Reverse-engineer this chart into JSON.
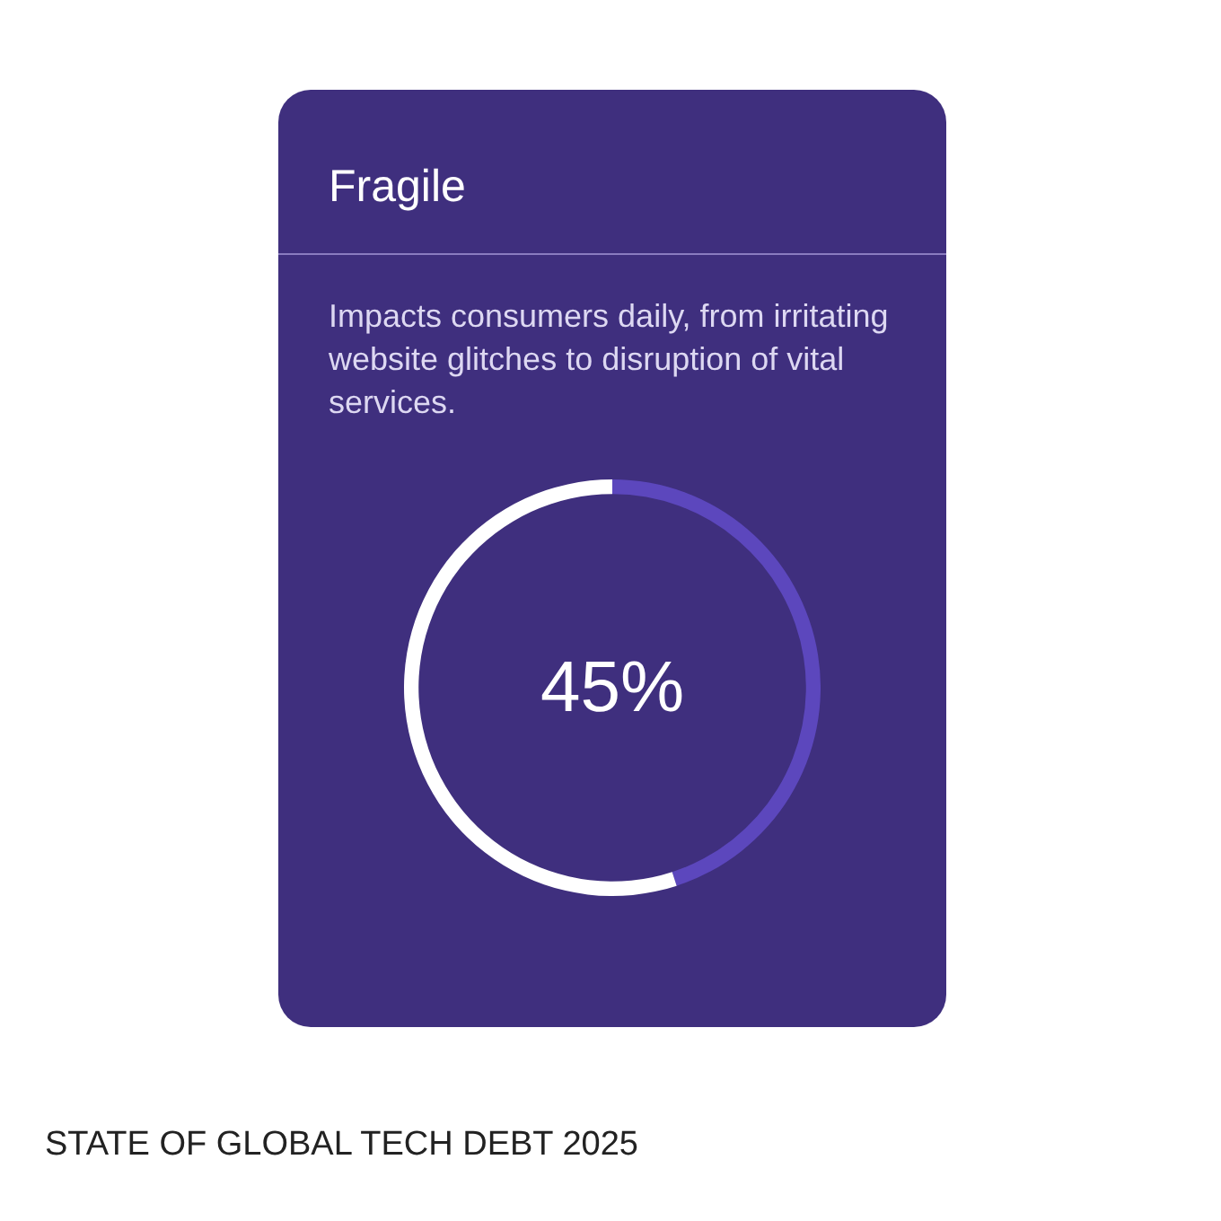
{
  "chart_data": {
    "type": "donut",
    "title": "Fragile",
    "subtitle": "Impacts consumers daily, from irritating website glitches to disruption of vital services.",
    "categories": [
      null,
      null
    ],
    "values": [
      45,
      55
    ],
    "colors": [
      "#5c47bd",
      "#ffffff"
    ],
    "value_labels": [
      "45%",
      null
    ],
    "legend": false,
    "annotations": [
      "STATE OF GLOBAL TECH DEBT 2025"
    ]
  }
}
